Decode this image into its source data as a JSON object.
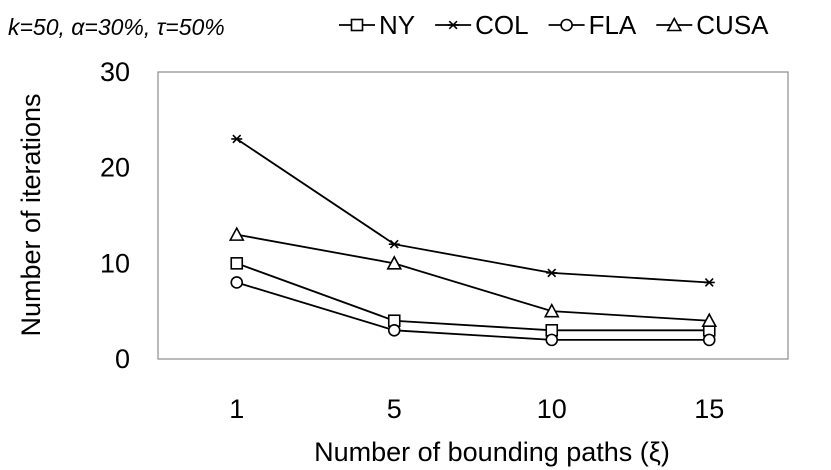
{
  "params_text": "k=50, α=30%, τ=50%",
  "chart_data": {
    "type": "line",
    "categories": [
      "1",
      "5",
      "10",
      "15"
    ],
    "series": [
      {
        "name": "NY",
        "marker": "square",
        "values": [
          10,
          4,
          3,
          3
        ]
      },
      {
        "name": "COL",
        "marker": "asterisk",
        "values": [
          23,
          12,
          9,
          8
        ]
      },
      {
        "name": "FLA",
        "marker": "circle",
        "values": [
          8,
          3,
          2,
          2
        ]
      },
      {
        "name": "CUSA",
        "marker": "triangle",
        "values": [
          13,
          10,
          5,
          4
        ]
      }
    ],
    "xlabel": "Number of bounding paths (ξ)",
    "ylabel": "Number of iterations",
    "ylim": [
      0,
      30
    ],
    "yticks": [
      "0",
      "10",
      "20",
      "30"
    ],
    "grid": false,
    "legend_position": "top",
    "line_color": "#000000"
  }
}
